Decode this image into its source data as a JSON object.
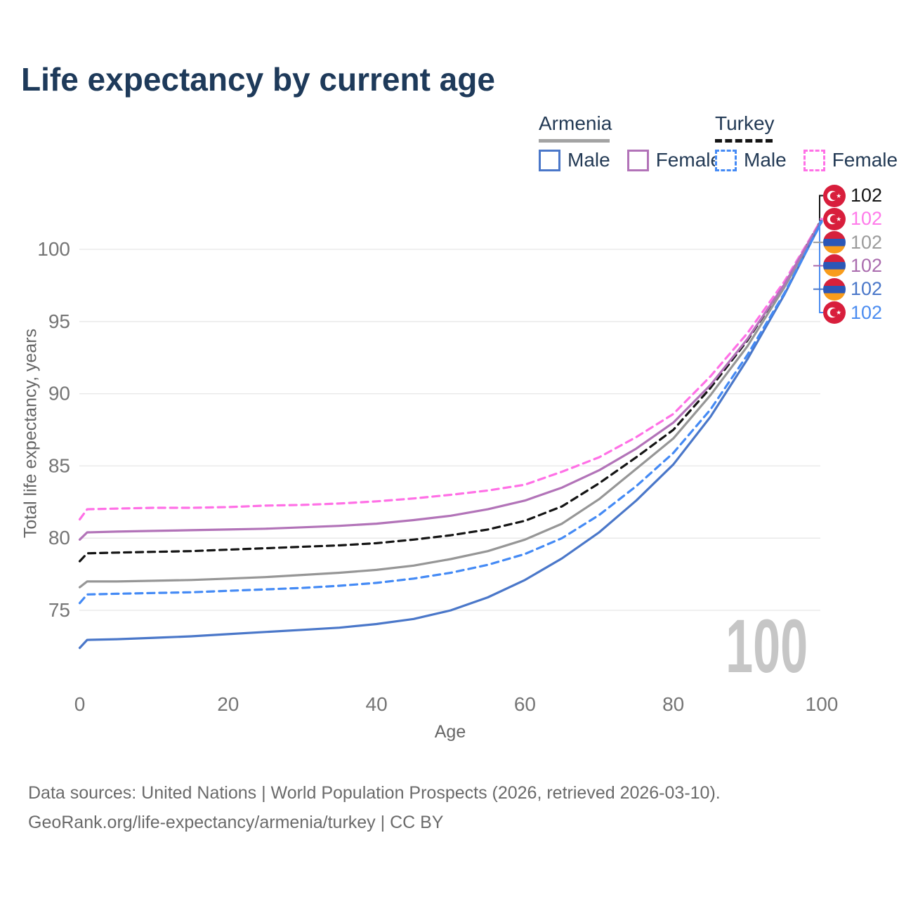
{
  "title": "Life expectancy by current age",
  "legend": {
    "groups": [
      {
        "label": "Armenia",
        "line_style": "solid",
        "underline_color": "#a3a3a3",
        "items": [
          {
            "label": "Male",
            "color": "#4a77c9",
            "dashed": false
          },
          {
            "label": "Female",
            "color": "#b273b8",
            "dashed": false
          }
        ]
      },
      {
        "label": "Turkey",
        "line_style": "dashed",
        "underline_color": "#141414",
        "items": [
          {
            "label": "Male",
            "color": "#448af5",
            "dashed": true
          },
          {
            "label": "Female",
            "color": "#ff70e6",
            "dashed": true
          }
        ]
      }
    ]
  },
  "chart_data": {
    "type": "line",
    "title": "Life expectancy by current age",
    "xlabel": "Age",
    "ylabel": "Total life expectancy, years",
    "xticks": [
      0,
      20,
      40,
      60,
      80,
      100
    ],
    "yticks": [
      75,
      80,
      85,
      90,
      95,
      100
    ],
    "xlim": [
      0,
      100
    ],
    "ylim": [
      71.5,
      103
    ],
    "grid": "horizontal",
    "legend_position": "top-right",
    "watermark_current_age": "100",
    "x": [
      0,
      1,
      5,
      10,
      15,
      20,
      25,
      30,
      35,
      40,
      45,
      50,
      55,
      60,
      65,
      70,
      75,
      80,
      85,
      90,
      95,
      100
    ],
    "series": [
      {
        "id": "turkey-overall",
        "country": "Turkey",
        "group": "overall",
        "color": "#141414",
        "dashed": true,
        "values": [
          78.4,
          78.95,
          79.0,
          79.05,
          79.1,
          79.2,
          79.3,
          79.4,
          79.5,
          79.65,
          79.9,
          80.2,
          80.6,
          81.2,
          82.2,
          83.8,
          85.6,
          87.5,
          90.4,
          93.7,
          97.6,
          102.1
        ]
      },
      {
        "id": "turkey-female",
        "country": "Turkey",
        "group": "Female",
        "color": "#ff70e6",
        "dashed": true,
        "values": [
          81.3,
          82.0,
          82.05,
          82.1,
          82.1,
          82.15,
          82.25,
          82.3,
          82.4,
          82.55,
          82.75,
          83.0,
          83.3,
          83.7,
          84.6,
          85.6,
          87.0,
          88.6,
          91.2,
          94.2,
          97.8,
          102.1
        ]
      },
      {
        "id": "armenia-overall",
        "country": "Armenia",
        "group": "overall",
        "color": "#969696",
        "dashed": false,
        "values": [
          76.6,
          77.0,
          77.0,
          77.05,
          77.1,
          77.2,
          77.3,
          77.45,
          77.6,
          77.8,
          78.1,
          78.55,
          79.1,
          79.9,
          81.0,
          82.7,
          84.8,
          86.9,
          89.9,
          93.3,
          97.4,
          102.0
        ]
      },
      {
        "id": "armenia-female",
        "country": "Armenia",
        "group": "Female",
        "color": "#b273b8",
        "dashed": false,
        "values": [
          79.9,
          80.4,
          80.45,
          80.5,
          80.55,
          80.6,
          80.65,
          80.75,
          80.85,
          81.0,
          81.25,
          81.55,
          82.0,
          82.6,
          83.5,
          84.7,
          86.2,
          88.0,
          90.6,
          93.8,
          97.6,
          102.05
        ]
      },
      {
        "id": "armenia-male",
        "country": "Armenia",
        "group": "Male",
        "color": "#4a77c9",
        "dashed": false,
        "values": [
          72.4,
          72.95,
          73.0,
          73.1,
          73.2,
          73.35,
          73.5,
          73.65,
          73.8,
          74.05,
          74.4,
          75.0,
          75.9,
          77.1,
          78.6,
          80.4,
          82.6,
          85.1,
          88.4,
          92.4,
          96.9,
          101.95
        ]
      },
      {
        "id": "turkey-male",
        "country": "Turkey",
        "group": "Male",
        "color": "#448af5",
        "dashed": true,
        "values": [
          75.5,
          76.1,
          76.15,
          76.2,
          76.25,
          76.35,
          76.45,
          76.55,
          76.7,
          76.9,
          77.2,
          77.6,
          78.15,
          78.9,
          80.0,
          81.6,
          83.6,
          85.9,
          88.9,
          92.7,
          97.0,
          101.9
        ]
      }
    ]
  },
  "end_labels": [
    {
      "series": "turkey-overall",
      "flag": "turkey",
      "value": "102",
      "color": "#141414"
    },
    {
      "series": "turkey-female",
      "flag": "turkey",
      "value": "102",
      "color": "#ff7aea"
    },
    {
      "series": "armenia-overall",
      "flag": "armenia",
      "value": "102",
      "color": "#9b9b9b"
    },
    {
      "series": "armenia-female",
      "flag": "armenia",
      "value": "102",
      "color": "#aa6cae"
    },
    {
      "series": "armenia-male",
      "flag": "armenia",
      "value": "102",
      "color": "#4a77c9"
    },
    {
      "series": "turkey-male",
      "flag": "turkey",
      "value": "102",
      "color": "#4b8cf0"
    }
  ],
  "footer": {
    "line1": "Data sources: United Nations | World Population Prospects (2026, retrieved 2026-03-10).",
    "line2": "GeoRank.org/life-expectancy/armenia/turkey | CC BY"
  }
}
